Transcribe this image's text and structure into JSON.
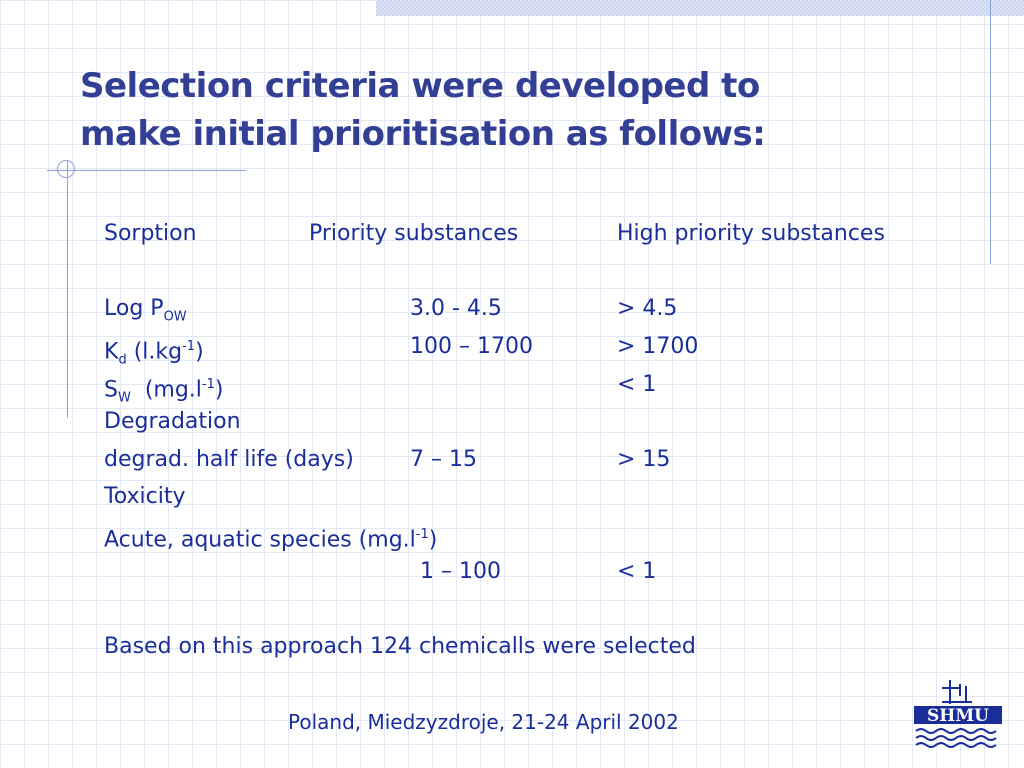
{
  "title": {
    "line1": "Selection criteria were developed to",
    "line2": "make initial prioritisation as follows:"
  },
  "table": {
    "header": {
      "col1": "Sorption",
      "col2": "Priority substances",
      "col3": "High priority substances"
    },
    "log_pow": {
      "label": "Log P",
      "sub": "OW",
      "priority": "3.0 - 4.5",
      "high": "> 4.5"
    },
    "kd": {
      "label": "K",
      "sub": "d",
      "unit_open": " (l.kg",
      "unit_sup": "-1",
      "unit_close": ")",
      "priority": "100 – 1700",
      "high": "> 1700"
    },
    "sw": {
      "label": "S",
      "sub": "W",
      "unit_open": "  (mg.l",
      "unit_sup": "-1",
      "unit_close": ")",
      "high": "< 1"
    },
    "degradation_heading": "Degradation",
    "half_life": {
      "label": "degrad. half life (days)",
      "priority": "7 – 15",
      "high": "> 15"
    },
    "toxicity_heading": "Toxicity",
    "acute": {
      "label_open": "Acute, aquatic species (mg.l",
      "label_sup": "-1",
      "label_close": ")",
      "priority": "1 – 100",
      "high": "< 1"
    }
  },
  "conclusion": "Based on this approach 124 chemicalls were selected",
  "footer": "Poland, Miedzyzdroje, 21-24 April 2002",
  "logo": {
    "text": "SHMU"
  },
  "colors": {
    "title": "#323f94",
    "text": "#1a2e9a",
    "grid": "#e3e8f4",
    "rule": "#8ea3d8"
  }
}
